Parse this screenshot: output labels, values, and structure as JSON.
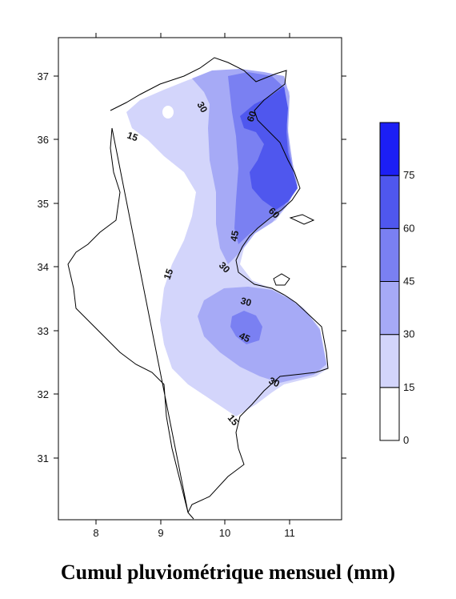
{
  "caption": "Cumul pluviométrique mensuel (mm)",
  "axes": {
    "x_ticks": [
      "8",
      "9",
      "10",
      "11"
    ],
    "y_ticks": [
      "37",
      "36",
      "35",
      "34",
      "33",
      "32",
      "31"
    ]
  },
  "contour_labels": [
    "30",
    "60",
    "15",
    "60",
    "45",
    "30",
    "15",
    "30",
    "45",
    "30",
    "15"
  ],
  "legend": {
    "levels": [
      "0",
      "15",
      "30",
      "45",
      "60",
      "75"
    ],
    "colors": [
      "#ffffff",
      "#d3d5fb",
      "#a6aaf6",
      "#7a80f2",
      "#4f57ee",
      "#1c1ff5"
    ]
  }
}
